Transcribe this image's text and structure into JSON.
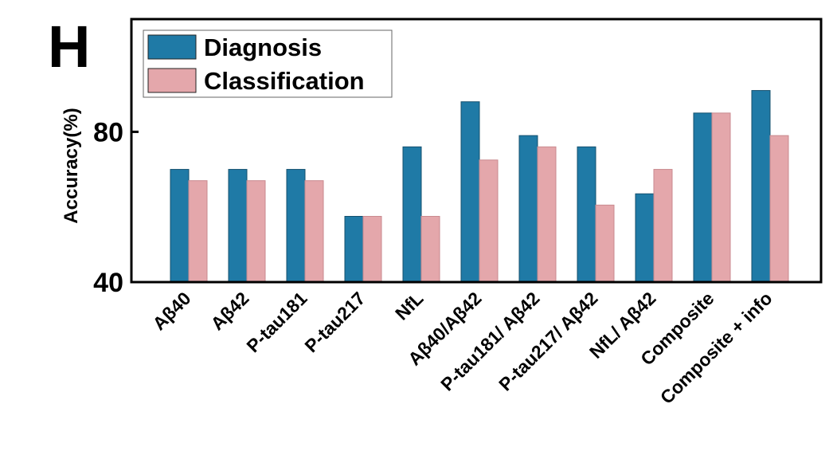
{
  "panel_label": "H",
  "chart_data": {
    "type": "bar",
    "title": "",
    "xlabel": "",
    "ylabel": "Accuracy(%)",
    "ylim": [
      40,
      110
    ],
    "yticks": [
      40,
      80
    ],
    "ytick_labels": [
      "40",
      "80"
    ],
    "grid": false,
    "legend": "top-left",
    "categories": [
      "Aβ40",
      "Aβ42",
      "P-tau181",
      "P-tau217",
      "NfL",
      "Aβ40/Aβ42",
      "P-tau181/ Aβ42",
      "P-tau217/ Aβ42",
      "NfL/ Aβ42",
      "Composite",
      "Composite + info"
    ],
    "series": [
      {
        "name": "Diagnosis",
        "color": "#1f7aa6",
        "values": [
          70,
          70,
          70,
          57.5,
          76,
          88,
          79,
          76,
          63.5,
          85,
          91
        ]
      },
      {
        "name": "Classification",
        "color": "#e4a7ab",
        "values": [
          67,
          67,
          67,
          57.5,
          57.5,
          72.5,
          76,
          60.5,
          70,
          85,
          79
        ]
      }
    ]
  }
}
